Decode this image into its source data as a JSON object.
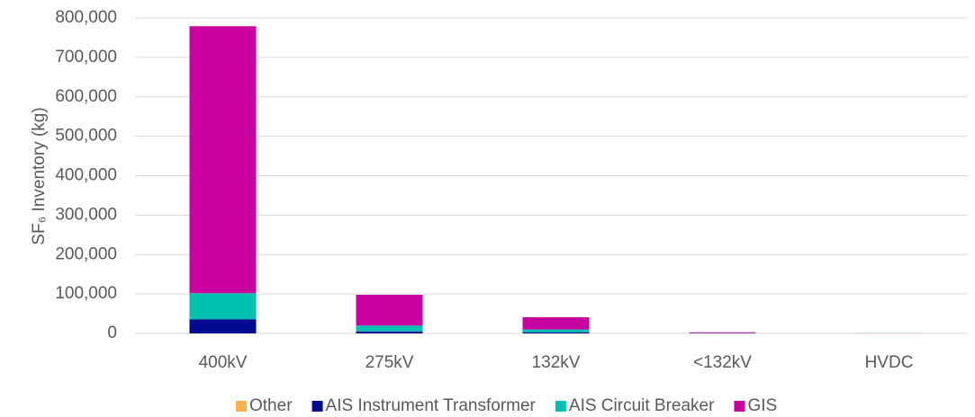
{
  "chart_data": {
    "type": "stacked_bar",
    "y_label": "SF₆ Inventory (kg)",
    "categories": [
      "400kV",
      "275kV",
      "132kV",
      "<132kV",
      "HVDC"
    ],
    "series": [
      {
        "name": "Other",
        "color": "#ffb04f",
        "values": [
          0,
          0,
          0,
          0,
          0
        ]
      },
      {
        "name": "AIS Instrument Transformer",
        "color": "#000c8f",
        "values": [
          36000,
          5000,
          3000,
          300,
          0
        ]
      },
      {
        "name": "AIS Circuit Breaker",
        "color": "#00c0b0",
        "values": [
          66000,
          15000,
          7000,
          500,
          0
        ]
      },
      {
        "name": "GIS",
        "color": "#c800a0",
        "values": [
          677000,
          78000,
          31000,
          2000,
          300
        ]
      }
    ],
    "ylim": [
      0,
      800000
    ],
    "yticks": [
      0,
      {
        "value": 100000,
        "label": "100,000"
      },
      {
        "value": 200000,
        "label": "200,000"
      },
      {
        "value": 300000,
        "label": "300,000"
      },
      {
        "value": 400000,
        "label": "400,000"
      },
      {
        "value": 500000,
        "label": "500,000"
      },
      {
        "value": 600000,
        "label": "600,000"
      },
      {
        "value": 700000,
        "label": "700,000"
      },
      {
        "value": 800000,
        "label": "800,000"
      }
    ],
    "grid": true,
    "legend": "bottom"
  }
}
